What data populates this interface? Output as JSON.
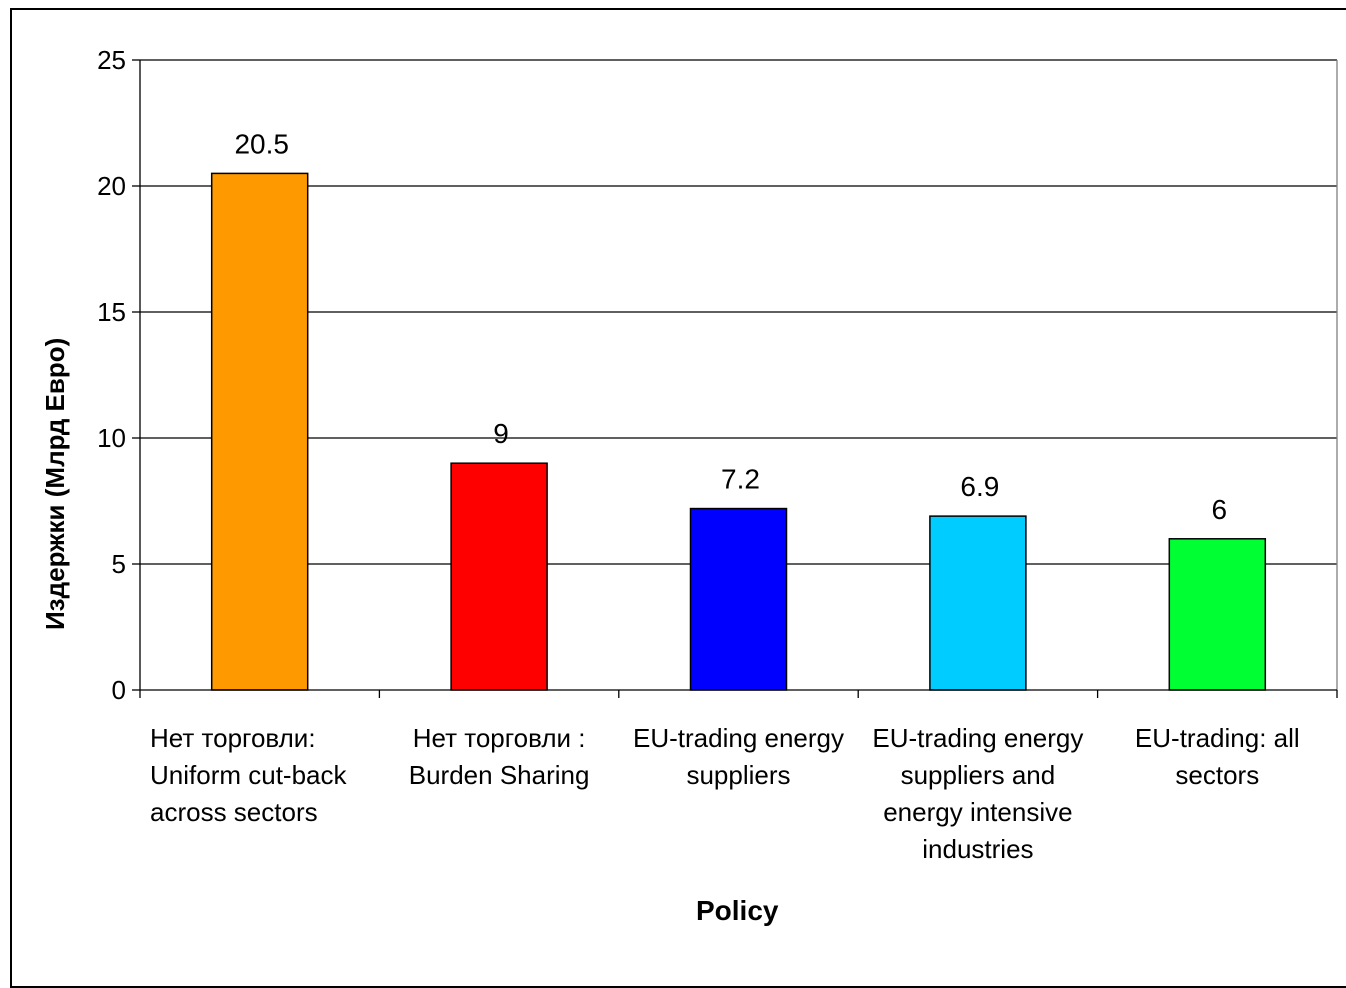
{
  "chart_data": {
    "type": "bar",
    "categories": [
      "Нет торговли:\nUniform cut-back across sectors",
      "Нет торговли :\nBurden Sharing",
      "EU-trading energy suppliers",
      "EU-trading energy suppliers and energy intensive industries",
      "EU-trading: all sectors"
    ],
    "values": [
      20.5,
      9,
      7.2,
      6.9,
      6
    ],
    "data_labels": [
      "20.5",
      "9",
      "7.2",
      "6.9",
      "6"
    ],
    "colors": [
      "#ff9900",
      "#ff0000",
      "#0000ff",
      "#00ccff",
      "#00ff33"
    ],
    "ylabel": "Издержки  (Млрд Евро)",
    "xlabel": "Policy",
    "ylim": [
      0,
      25
    ],
    "yticks": [
      "0",
      "5",
      "10",
      "15",
      "20",
      "25"
    ],
    "grid": true,
    "legend": "none"
  }
}
